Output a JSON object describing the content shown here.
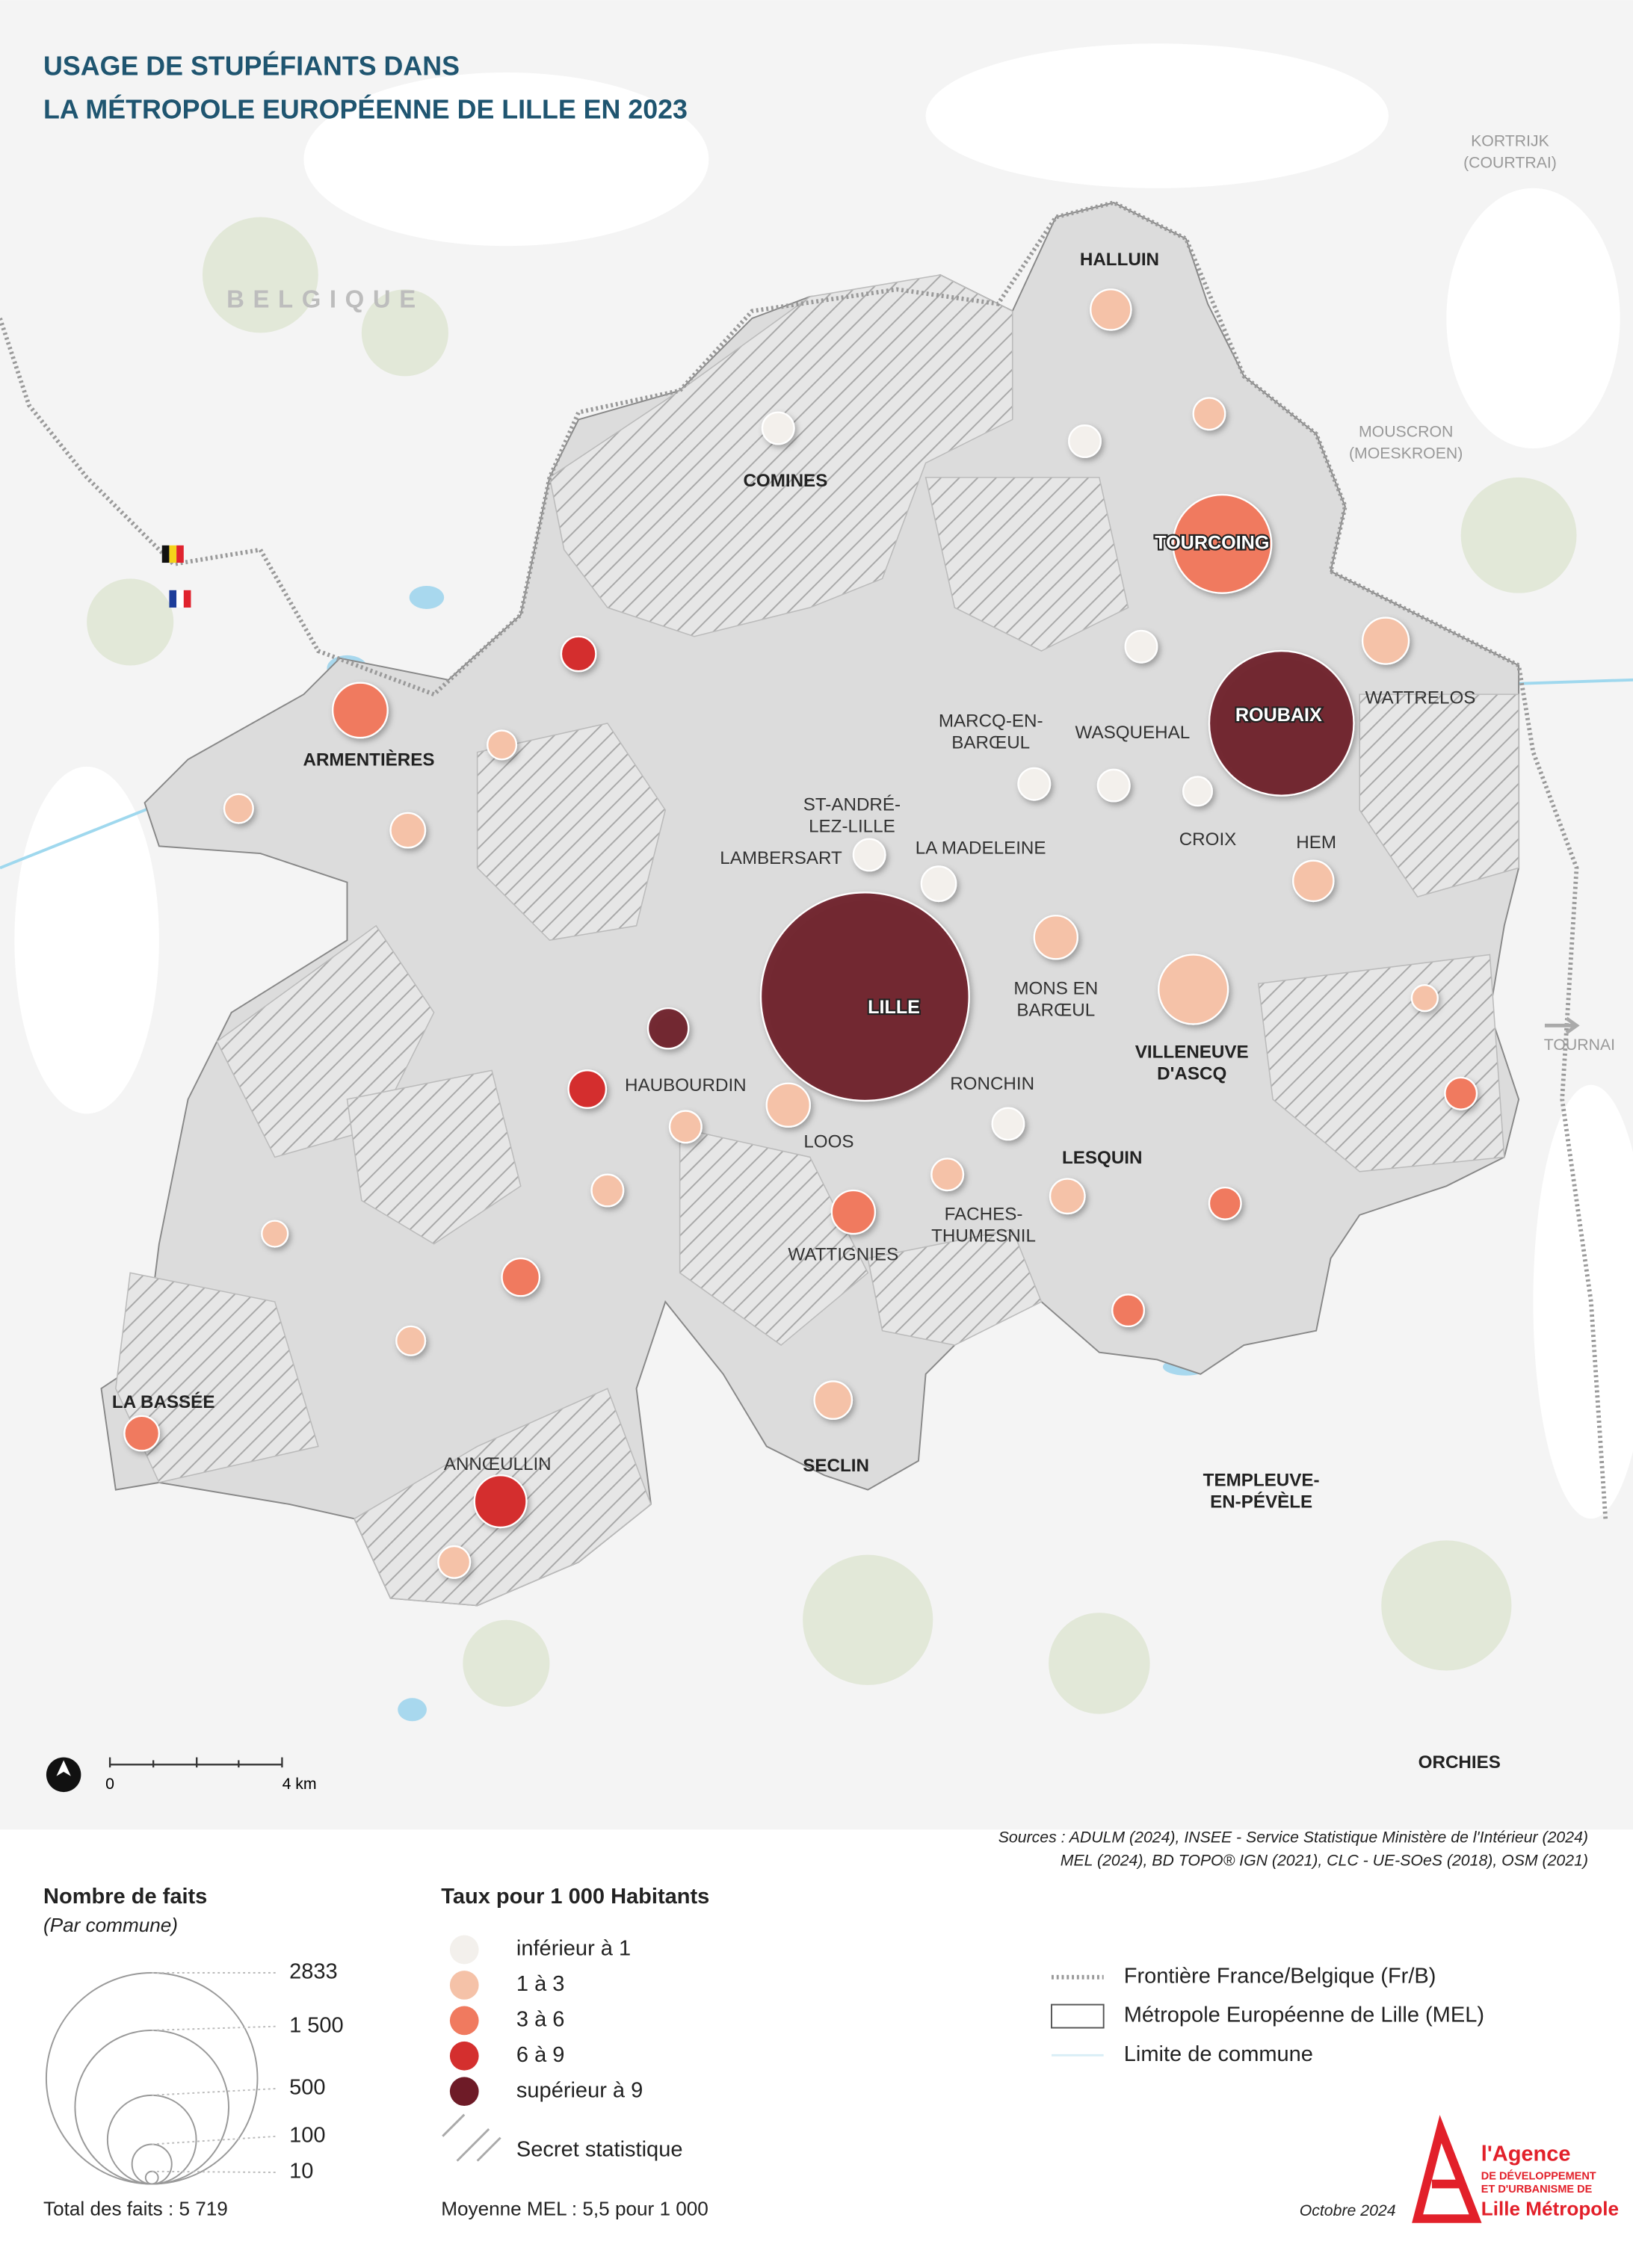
{
  "header": {
    "title": [
      "USAGE DE STUPÉFIANTS DANS",
      "LA MÉTROPOLE EUROPÉENNE DE LILLE EN 2023"
    ]
  },
  "map": {
    "country": "BELGIQUE",
    "foreign": [
      [
        "KORTRIJK",
        "(COURTRAI)"
      ],
      [
        "MOUSCRON",
        "(MOESKROEN)"
      ],
      [
        "TOURNAI"
      ]
    ],
    "places": [
      [
        "HALLUIN"
      ],
      [
        "COMINES"
      ],
      [
        "TOURCOING"
      ],
      [
        "ROUBAIX"
      ],
      [
        "WATTRELOS"
      ],
      [
        "ARMENTIÈRES"
      ],
      [
        "MARCQ-EN-",
        "BARŒUL"
      ],
      [
        "WASQUEHAL"
      ],
      [
        "ST-ANDRÉ-",
        "LEZ-LILLE"
      ],
      [
        "LAMBERSART"
      ],
      [
        "LA MADELEINE"
      ],
      [
        "CROIX"
      ],
      [
        "HEM"
      ],
      [
        "LILLE"
      ],
      [
        "MONS EN",
        "BARŒUL"
      ],
      [
        "VILLENEUVE",
        "D'ASCQ"
      ],
      [
        "HAUBOURDIN"
      ],
      [
        "RONCHIN"
      ],
      [
        "LOOS"
      ],
      [
        "LESQUIN"
      ],
      [
        "FACHES-",
        "THUMESNIL"
      ],
      [
        "WATTIGNIES"
      ],
      [
        "LA BASSÉE"
      ],
      [
        "ANNŒULLIN"
      ],
      [
        "SECLIN"
      ],
      [
        "TEMPLEUVE-",
        "EN-PÉVÈLE"
      ],
      [
        "ORCHIES"
      ]
    ],
    "scale": [
      "0",
      "4 km"
    ],
    "sources": [
      "Sources :  ADULM (2024), INSEE - Service Statistique Ministère de l'Intérieur (2024)",
      "MEL (2024), BD TOPO® IGN (2021), CLC - UE-SOeS (2018), OSM (2021)"
    ]
  },
  "legend": {
    "size": {
      "title": "Nombre de faits",
      "subtitle": "(Par commune)",
      "ticks": [
        2833,
        {
          "value": 1500,
          "label": "1 500"
        },
        500,
        100,
        10
      ],
      "total": "Total des faits : 5 719"
    },
    "rate": {
      "title": "Taux pour 1 000 Habitants",
      "classes": [
        {
          "label": "inférieur à 1",
          "color": "#f3f0ec"
        },
        {
          "label": "1 à 3",
          "color": "#f5c2a8"
        },
        {
          "label": "3 à 6",
          "color": "#f07a5f"
        },
        {
          "label": "6 à 9",
          "color": "#d42f2e"
        },
        {
          "label": "supérieur à 9",
          "color": "#6e1b27"
        }
      ],
      "secret": "Secret statistique",
      "mean": "Moyenne MEL : 5,5 pour 1 000"
    },
    "lines": [
      "Frontière France/Belgique (Fr/B)",
      "Métropole Européenne de Lille (MEL)",
      "Limite de commune"
    ]
  },
  "footer": {
    "date": "Octobre 2024",
    "logo": [
      "l'Agence",
      "DE DÉVELOPPEMENT",
      "ET D'URBANISME DE",
      "Lille Métropole"
    ]
  }
}
